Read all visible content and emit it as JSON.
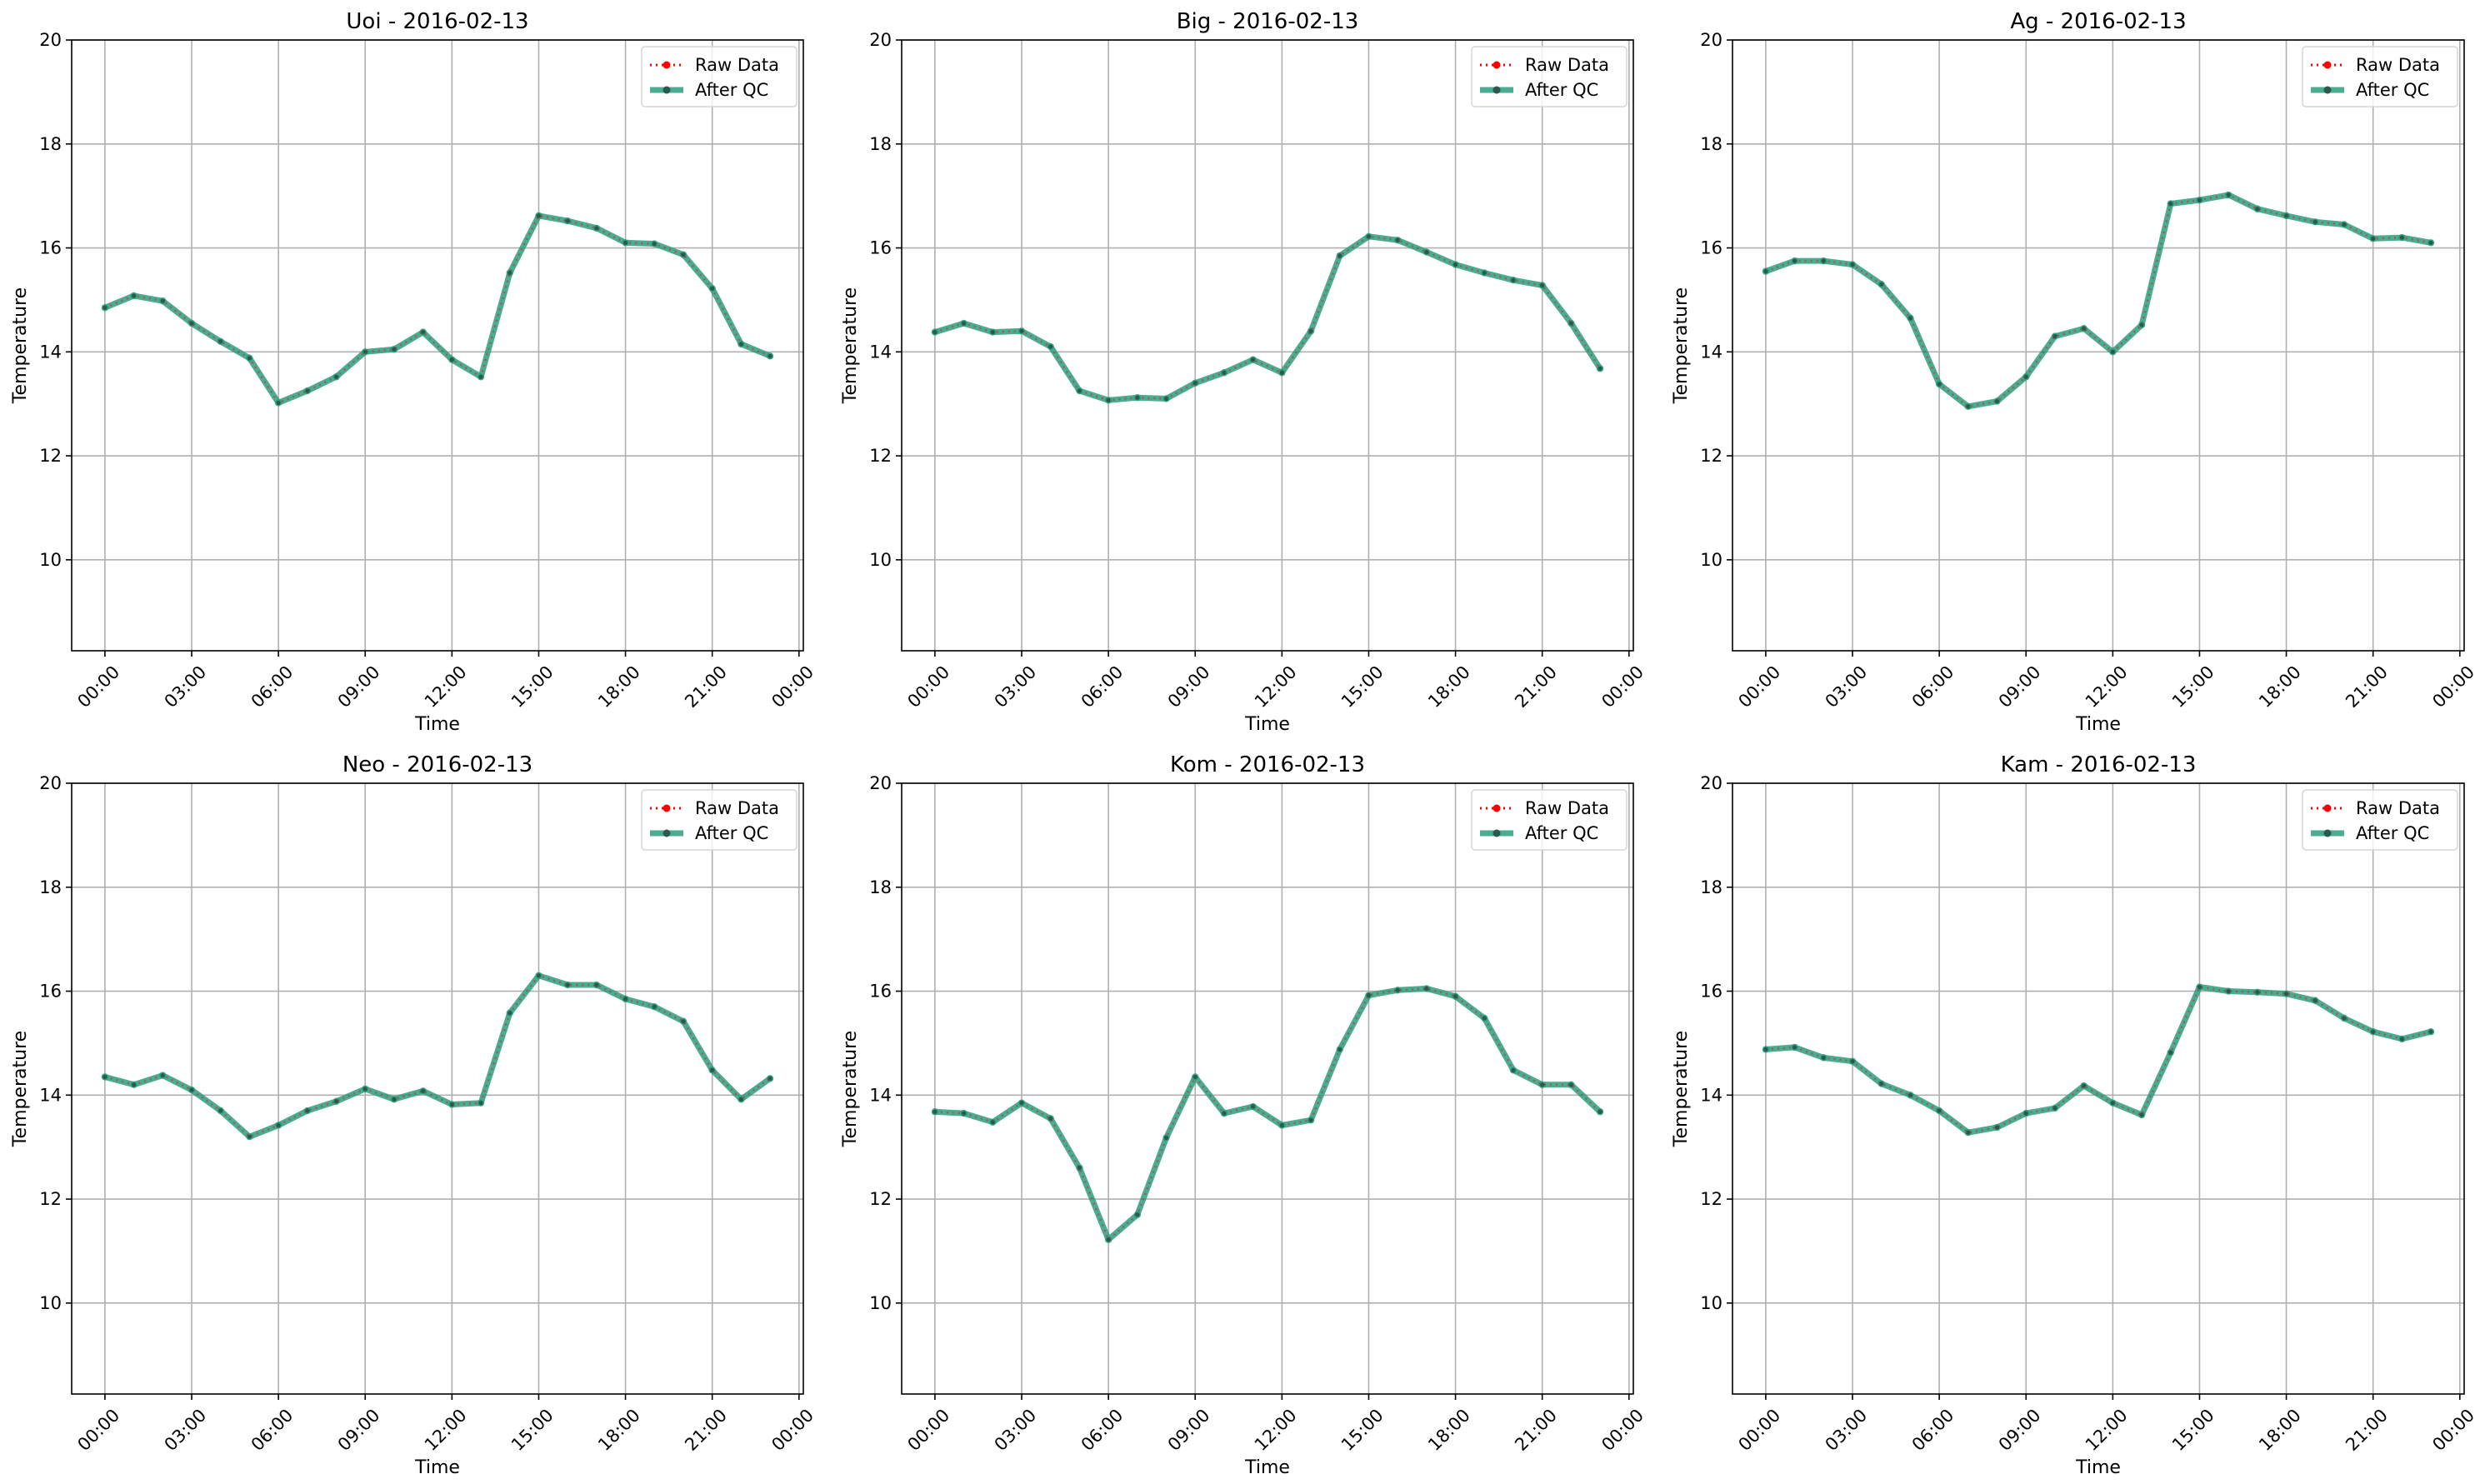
{
  "chart_data": [
    {
      "type": "line",
      "title": "Uoi - 2016-02-13",
      "xlabel": "Time",
      "ylabel": "Temperature",
      "xlim": [
        -1.15,
        24.15
      ],
      "ylim": [
        8.25,
        20.0
      ],
      "yticks": [
        10,
        12,
        14,
        16,
        18,
        20
      ],
      "xticks": [
        0,
        3,
        6,
        9,
        12,
        15,
        18,
        21,
        24
      ],
      "xtick_labels": [
        "00:00",
        "03:00",
        "06:00",
        "09:00",
        "12:00",
        "15:00",
        "18:00",
        "21:00",
        "00:00"
      ],
      "grid": true,
      "legend": "top-right",
      "x": [
        0,
        1,
        2,
        3,
        4,
        5,
        6,
        7,
        8,
        9,
        10,
        11,
        12,
        13,
        14,
        15,
        16,
        17,
        18,
        19,
        20,
        21,
        22,
        23
      ],
      "series": [
        {
          "name": "Raw Data",
          "color": "#ff0000",
          "style": "dotted-markers",
          "values": [
            14.85,
            15.08,
            14.98,
            14.55,
            14.2,
            13.88,
            13.02,
            13.25,
            13.52,
            14.0,
            14.05,
            14.38,
            13.85,
            13.52,
            15.52,
            16.62,
            16.52,
            16.38,
            16.1,
            16.08,
            15.87,
            15.22,
            14.15,
            13.92
          ]
        },
        {
          "name": "After QC",
          "color": "#2a9d7c",
          "style": "solid-markers",
          "values": [
            14.85,
            15.08,
            14.98,
            14.55,
            14.2,
            13.88,
            13.02,
            13.25,
            13.52,
            14.0,
            14.05,
            14.38,
            13.85,
            13.52,
            15.52,
            16.62,
            16.52,
            16.38,
            16.1,
            16.08,
            15.87,
            15.22,
            14.15,
            13.92
          ]
        }
      ]
    },
    {
      "type": "line",
      "title": "Big - 2016-02-13",
      "xlabel": "Time",
      "ylabel": "Temperature",
      "xlim": [
        -1.15,
        24.15
      ],
      "ylim": [
        8.25,
        20.0
      ],
      "yticks": [
        10,
        12,
        14,
        16,
        18,
        20
      ],
      "xticks": [
        0,
        3,
        6,
        9,
        12,
        15,
        18,
        21,
        24
      ],
      "xtick_labels": [
        "00:00",
        "03:00",
        "06:00",
        "09:00",
        "12:00",
        "15:00",
        "18:00",
        "21:00",
        "00:00"
      ],
      "grid": true,
      "legend": "top-right",
      "x": [
        0,
        1,
        2,
        3,
        4,
        5,
        6,
        7,
        8,
        9,
        10,
        11,
        12,
        13,
        14,
        15,
        16,
        17,
        18,
        19,
        20,
        21,
        22,
        23
      ],
      "series": [
        {
          "name": "Raw Data",
          "color": "#ff0000",
          "style": "dotted-markers",
          "values": [
            14.38,
            14.55,
            14.38,
            14.4,
            14.1,
            13.25,
            13.07,
            13.12,
            13.1,
            13.4,
            13.6,
            13.85,
            13.6,
            14.4,
            15.85,
            16.22,
            16.15,
            15.92,
            15.68,
            15.52,
            15.38,
            15.28,
            14.55,
            13.68
          ]
        },
        {
          "name": "After QC",
          "color": "#2a9d7c",
          "style": "solid-markers",
          "values": [
            14.38,
            14.55,
            14.38,
            14.4,
            14.1,
            13.25,
            13.07,
            13.12,
            13.1,
            13.4,
            13.6,
            13.85,
            13.6,
            14.4,
            15.85,
            16.22,
            16.15,
            15.92,
            15.68,
            15.52,
            15.38,
            15.28,
            14.55,
            13.68
          ]
        }
      ]
    },
    {
      "type": "line",
      "title": "Ag - 2016-02-13",
      "xlabel": "Time",
      "ylabel": "Temperature",
      "xlim": [
        -1.15,
        24.15
      ],
      "ylim": [
        8.25,
        20.0
      ],
      "yticks": [
        10,
        12,
        14,
        16,
        18,
        20
      ],
      "xticks": [
        0,
        3,
        6,
        9,
        12,
        15,
        18,
        21,
        24
      ],
      "xtick_labels": [
        "00:00",
        "03:00",
        "06:00",
        "09:00",
        "12:00",
        "15:00",
        "18:00",
        "21:00",
        "00:00"
      ],
      "grid": true,
      "legend": "top-right",
      "x": [
        0,
        1,
        2,
        3,
        4,
        5,
        6,
        7,
        8,
        9,
        10,
        11,
        12,
        13,
        14,
        15,
        16,
        17,
        18,
        19,
        20,
        21,
        22,
        23
      ],
      "series": [
        {
          "name": "Raw Data",
          "color": "#ff0000",
          "style": "dotted-markers",
          "values": [
            15.55,
            15.75,
            15.75,
            15.68,
            15.3,
            14.65,
            13.38,
            12.95,
            13.05,
            13.52,
            14.3,
            14.45,
            14.0,
            14.52,
            16.85,
            16.92,
            17.02,
            16.75,
            16.62,
            16.5,
            16.45,
            16.18,
            16.2,
            16.1
          ]
        },
        {
          "name": "After QC",
          "color": "#2a9d7c",
          "style": "solid-markers",
          "values": [
            15.55,
            15.75,
            15.75,
            15.68,
            15.3,
            14.65,
            13.38,
            12.95,
            13.05,
            13.52,
            14.3,
            14.45,
            14.0,
            14.52,
            16.85,
            16.92,
            17.02,
            16.75,
            16.62,
            16.5,
            16.45,
            16.18,
            16.2,
            16.1
          ]
        }
      ]
    },
    {
      "type": "line",
      "title": "Neo - 2016-02-13",
      "xlabel": "Time",
      "ylabel": "Temperature",
      "xlim": [
        -1.15,
        24.15
      ],
      "ylim": [
        8.25,
        20.0
      ],
      "yticks": [
        10,
        12,
        14,
        16,
        18,
        20
      ],
      "xticks": [
        0,
        3,
        6,
        9,
        12,
        15,
        18,
        21,
        24
      ],
      "xtick_labels": [
        "00:00",
        "03:00",
        "06:00",
        "09:00",
        "12:00",
        "15:00",
        "18:00",
        "21:00",
        "00:00"
      ],
      "grid": true,
      "legend": "top-right",
      "x": [
        0,
        1,
        2,
        3,
        4,
        5,
        6,
        7,
        8,
        9,
        10,
        11,
        12,
        13,
        14,
        15,
        16,
        17,
        18,
        19,
        20,
        21,
        22,
        23
      ],
      "series": [
        {
          "name": "Raw Data",
          "color": "#ff0000",
          "style": "dotted-markers",
          "values": [
            14.35,
            14.2,
            14.38,
            14.1,
            13.7,
            13.2,
            13.42,
            13.7,
            13.88,
            14.12,
            13.92,
            14.08,
            13.82,
            13.85,
            15.58,
            16.3,
            16.12,
            16.12,
            15.85,
            15.7,
            15.42,
            14.48,
            13.92,
            14.32
          ]
        },
        {
          "name": "After QC",
          "color": "#2a9d7c",
          "style": "solid-markers",
          "values": [
            14.35,
            14.2,
            14.38,
            14.1,
            13.7,
            13.2,
            13.42,
            13.7,
            13.88,
            14.12,
            13.92,
            14.08,
            13.82,
            13.85,
            15.58,
            16.3,
            16.12,
            16.12,
            15.85,
            15.7,
            15.42,
            14.48,
            13.92,
            14.32
          ]
        }
      ]
    },
    {
      "type": "line",
      "title": "Kom - 2016-02-13",
      "xlabel": "Time",
      "ylabel": "Temperature",
      "xlim": [
        -1.15,
        24.15
      ],
      "ylim": [
        8.25,
        20.0
      ],
      "yticks": [
        10,
        12,
        14,
        16,
        18,
        20
      ],
      "xticks": [
        0,
        3,
        6,
        9,
        12,
        15,
        18,
        21,
        24
      ],
      "xtick_labels": [
        "00:00",
        "03:00",
        "06:00",
        "09:00",
        "12:00",
        "15:00",
        "18:00",
        "21:00",
        "00:00"
      ],
      "grid": true,
      "legend": "top-right",
      "x": [
        0,
        1,
        2,
        3,
        4,
        5,
        6,
        7,
        8,
        9,
        10,
        11,
        12,
        13,
        14,
        15,
        16,
        17,
        18,
        19,
        20,
        21,
        22,
        23
      ],
      "series": [
        {
          "name": "Raw Data",
          "color": "#ff0000",
          "style": "dotted-markers",
          "values": [
            13.68,
            13.65,
            13.48,
            13.85,
            13.55,
            12.6,
            11.22,
            11.7,
            13.18,
            14.35,
            13.65,
            13.78,
            13.42,
            13.52,
            14.88,
            15.92,
            16.02,
            16.05,
            15.9,
            15.48,
            14.48,
            14.2,
            14.2,
            13.68
          ]
        },
        {
          "name": "After QC",
          "color": "#2a9d7c",
          "style": "solid-markers",
          "values": [
            13.68,
            13.65,
            13.48,
            13.85,
            13.55,
            12.6,
            11.22,
            11.7,
            13.18,
            14.35,
            13.65,
            13.78,
            13.42,
            13.52,
            14.88,
            15.92,
            16.02,
            16.05,
            15.9,
            15.48,
            14.48,
            14.2,
            14.2,
            13.68
          ]
        }
      ]
    },
    {
      "type": "line",
      "title": "Kam - 2016-02-13",
      "xlabel": "Time",
      "ylabel": "Temperature",
      "xlim": [
        -1.15,
        24.15
      ],
      "ylim": [
        8.25,
        20.0
      ],
      "yticks": [
        10,
        12,
        14,
        16,
        18,
        20
      ],
      "xticks": [
        0,
        3,
        6,
        9,
        12,
        15,
        18,
        21,
        24
      ],
      "xtick_labels": [
        "00:00",
        "03:00",
        "06:00",
        "09:00",
        "12:00",
        "15:00",
        "18:00",
        "21:00",
        "00:00"
      ],
      "grid": true,
      "legend": "top-right",
      "x": [
        0,
        1,
        2,
        3,
        4,
        5,
        6,
        7,
        8,
        9,
        10,
        11,
        12,
        13,
        14,
        15,
        16,
        17,
        18,
        19,
        20,
        21,
        22,
        23
      ],
      "series": [
        {
          "name": "Raw Data",
          "color": "#ff0000",
          "style": "dotted-markers",
          "values": [
            14.88,
            14.92,
            14.72,
            14.65,
            14.22,
            14.0,
            13.7,
            13.28,
            13.38,
            13.65,
            13.75,
            14.18,
            13.85,
            13.62,
            14.82,
            16.08,
            16.0,
            15.98,
            15.95,
            15.82,
            15.48,
            15.22,
            15.08,
            15.22
          ]
        },
        {
          "name": "After QC",
          "color": "#2a9d7c",
          "style": "solid-markers",
          "values": [
            14.88,
            14.92,
            14.72,
            14.65,
            14.22,
            14.0,
            13.7,
            13.28,
            13.38,
            13.65,
            13.75,
            14.18,
            13.85,
            13.62,
            14.82,
            16.08,
            16.0,
            15.98,
            15.95,
            15.82,
            15.48,
            15.22,
            15.08,
            15.22
          ]
        }
      ]
    }
  ]
}
